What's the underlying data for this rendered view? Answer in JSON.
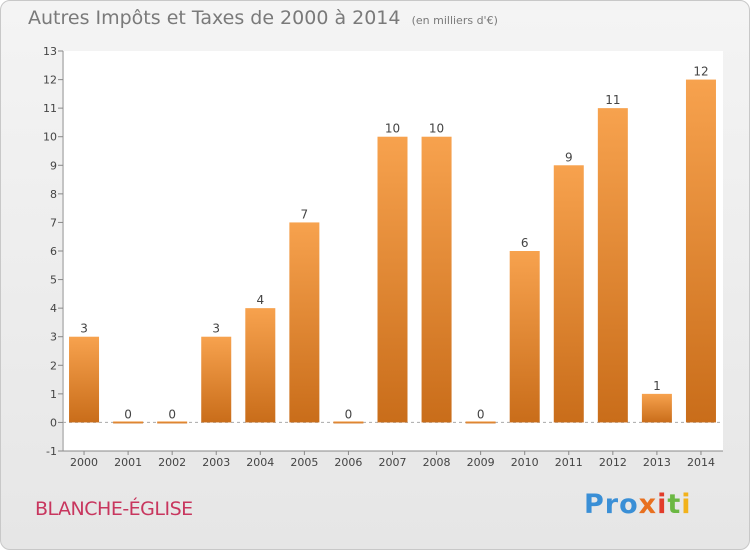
{
  "chart_data": {
    "type": "bar",
    "title": "Autres Impôts et Taxes de 2000 à 2014",
    "subtitle": "(en milliers d'€)",
    "categories": [
      "2000",
      "2001",
      "2002",
      "2003",
      "2004",
      "2005",
      "2006",
      "2007",
      "2008",
      "2009",
      "2010",
      "2011",
      "2012",
      "2013",
      "2014"
    ],
    "values": [
      3,
      0,
      0,
      3,
      4,
      7,
      0,
      10,
      10,
      0,
      6,
      9,
      11,
      1,
      12
    ],
    "ylim": [
      -1,
      13
    ],
    "yticks": [
      -1,
      0,
      1,
      2,
      3,
      4,
      5,
      6,
      7,
      8,
      9,
      10,
      11,
      12,
      13
    ],
    "grid": false,
    "legend": "none",
    "bar_color_light": "#f7a24e",
    "bar_color_dark": "#c96d1a"
  },
  "footer": {
    "town": "BLANCHE-ÉGLISE",
    "logo": [
      "Pro",
      "x",
      "i",
      "t",
      "i"
    ]
  }
}
